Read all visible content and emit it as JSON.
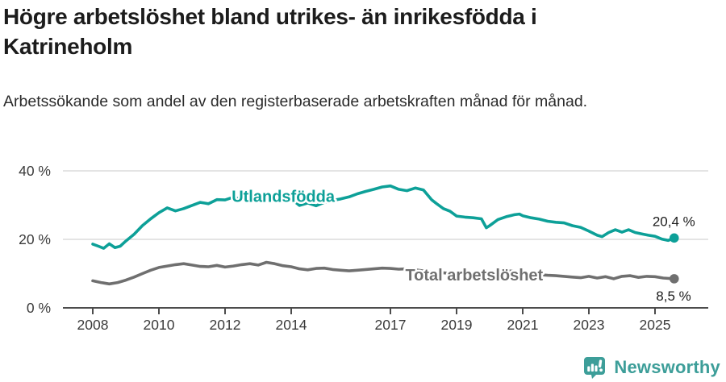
{
  "header": {
    "title": "Högre arbetslöshet bland utrikes- än inrikesfödda i Katrineholm",
    "subtitle": "Arbetssökande som andel av den registerbaserade arbetskraften månad för månad."
  },
  "chart_data": {
    "type": "line",
    "unit": "%",
    "grid": "horizontal-only",
    "legend_position": "inline-labels-on-lines",
    "xlim": [
      2007.3,
      2026.6
    ],
    "ylim": [
      0,
      43
    ],
    "x_ticks": [
      2008,
      2010,
      2012,
      2014,
      2017,
      2019,
      2021,
      2023,
      2025
    ],
    "y_ticks": [
      0,
      20,
      40
    ],
    "y_tick_labels": [
      "0 %",
      "20 %",
      "40 %"
    ],
    "series": [
      {
        "name": "Utlandsfödda",
        "color": "#0da098",
        "end_value": 20.4,
        "end_label": "20,4 %",
        "label_pos": {
          "x": 2012.2,
          "y": 31.0
        },
        "points": [
          [
            2008.0,
            18.6
          ],
          [
            2008.17,
            18.0
          ],
          [
            2008.33,
            17.4
          ],
          [
            2008.5,
            18.7
          ],
          [
            2008.67,
            17.6
          ],
          [
            2008.83,
            18.0
          ],
          [
            2009.0,
            19.5
          ],
          [
            2009.25,
            21.5
          ],
          [
            2009.5,
            24.0
          ],
          [
            2009.75,
            26.0
          ],
          [
            2010.0,
            27.8
          ],
          [
            2010.25,
            29.2
          ],
          [
            2010.5,
            28.3
          ],
          [
            2010.75,
            29.0
          ],
          [
            2011.0,
            29.9
          ],
          [
            2011.25,
            30.8
          ],
          [
            2011.5,
            30.4
          ],
          [
            2011.75,
            31.6
          ],
          [
            2012.0,
            31.5
          ],
          [
            2012.25,
            32.3
          ],
          [
            2012.5,
            31.6
          ],
          [
            2012.75,
            31.9
          ],
          [
            2013.0,
            32.1
          ],
          [
            2013.25,
            33.4
          ],
          [
            2013.5,
            32.6
          ],
          [
            2013.75,
            32.1
          ],
          [
            2014.0,
            31.8
          ],
          [
            2014.25,
            29.9
          ],
          [
            2014.5,
            30.6
          ],
          [
            2014.75,
            29.8
          ],
          [
            2015.0,
            30.8
          ],
          [
            2015.25,
            31.4
          ],
          [
            2015.5,
            31.8
          ],
          [
            2015.75,
            32.4
          ],
          [
            2016.0,
            33.3
          ],
          [
            2016.25,
            34.0
          ],
          [
            2016.5,
            34.6
          ],
          [
            2016.75,
            35.3
          ],
          [
            2017.0,
            35.6
          ],
          [
            2017.25,
            34.6
          ],
          [
            2017.5,
            34.2
          ],
          [
            2017.75,
            35.0
          ],
          [
            2018.0,
            34.4
          ],
          [
            2018.25,
            31.5
          ],
          [
            2018.4,
            30.4
          ],
          [
            2018.6,
            29.0
          ],
          [
            2018.8,
            28.2
          ],
          [
            2019.0,
            26.8
          ],
          [
            2019.25,
            26.5
          ],
          [
            2019.5,
            26.3
          ],
          [
            2019.75,
            26.0
          ],
          [
            2019.9,
            23.4
          ],
          [
            2020.0,
            24.0
          ],
          [
            2020.25,
            25.8
          ],
          [
            2020.5,
            26.6
          ],
          [
            2020.75,
            27.2
          ],
          [
            2020.9,
            27.4
          ],
          [
            2021.0,
            26.9
          ],
          [
            2021.25,
            26.3
          ],
          [
            2021.5,
            25.9
          ],
          [
            2021.75,
            25.3
          ],
          [
            2022.0,
            25.0
          ],
          [
            2022.25,
            24.8
          ],
          [
            2022.5,
            24.0
          ],
          [
            2022.75,
            23.5
          ],
          [
            2023.0,
            22.4
          ],
          [
            2023.25,
            21.2
          ],
          [
            2023.4,
            20.8
          ],
          [
            2023.6,
            22.0
          ],
          [
            2023.8,
            22.8
          ],
          [
            2024.0,
            22.1
          ],
          [
            2024.2,
            22.8
          ],
          [
            2024.4,
            22.0
          ],
          [
            2024.6,
            21.6
          ],
          [
            2024.8,
            21.2
          ],
          [
            2025.0,
            20.9
          ],
          [
            2025.2,
            20.1
          ],
          [
            2025.4,
            19.7
          ],
          [
            2025.58,
            20.4
          ]
        ]
      },
      {
        "name": "Total arbetslöshet",
        "color": "#6f6f6f",
        "end_value": 8.5,
        "end_label": "8,5 %",
        "label_pos": {
          "x": 2017.45,
          "y": 8.0
        },
        "points": [
          [
            2008.0,
            7.9
          ],
          [
            2008.25,
            7.4
          ],
          [
            2008.5,
            7.0
          ],
          [
            2008.75,
            7.4
          ],
          [
            2009.0,
            8.1
          ],
          [
            2009.25,
            9.0
          ],
          [
            2009.5,
            10.0
          ],
          [
            2009.75,
            11.0
          ],
          [
            2010.0,
            11.8
          ],
          [
            2010.25,
            12.2
          ],
          [
            2010.5,
            12.6
          ],
          [
            2010.75,
            12.9
          ],
          [
            2011.0,
            12.5
          ],
          [
            2011.25,
            12.1
          ],
          [
            2011.5,
            12.0
          ],
          [
            2011.75,
            12.4
          ],
          [
            2012.0,
            11.9
          ],
          [
            2012.25,
            12.2
          ],
          [
            2012.5,
            12.6
          ],
          [
            2012.75,
            12.9
          ],
          [
            2013.0,
            12.5
          ],
          [
            2013.25,
            13.3
          ],
          [
            2013.5,
            12.9
          ],
          [
            2013.75,
            12.3
          ],
          [
            2014.0,
            12.0
          ],
          [
            2014.25,
            11.4
          ],
          [
            2014.5,
            11.1
          ],
          [
            2014.75,
            11.5
          ],
          [
            2015.0,
            11.6
          ],
          [
            2015.25,
            11.2
          ],
          [
            2015.5,
            11.0
          ],
          [
            2015.75,
            10.8
          ],
          [
            2016.0,
            11.0
          ],
          [
            2016.25,
            11.2
          ],
          [
            2016.5,
            11.4
          ],
          [
            2016.75,
            11.6
          ],
          [
            2017.0,
            11.5
          ],
          [
            2017.25,
            11.3
          ],
          [
            2017.5,
            11.4
          ],
          [
            2017.75,
            11.1
          ],
          [
            2018.0,
            10.8
          ],
          [
            2018.25,
            10.5
          ],
          [
            2018.5,
            10.3
          ],
          [
            2018.75,
            10.1
          ],
          [
            2019.0,
            10.0
          ],
          [
            2019.25,
            9.8
          ],
          [
            2019.5,
            9.7
          ],
          [
            2019.75,
            9.5
          ],
          [
            2020.0,
            9.8
          ],
          [
            2020.25,
            10.6
          ],
          [
            2020.5,
            10.9
          ],
          [
            2020.75,
            10.6
          ],
          [
            2021.0,
            10.3
          ],
          [
            2021.25,
            10.0
          ],
          [
            2021.5,
            9.7
          ],
          [
            2021.75,
            9.5
          ],
          [
            2022.0,
            9.4
          ],
          [
            2022.25,
            9.2
          ],
          [
            2022.5,
            9.0
          ],
          [
            2022.75,
            8.8
          ],
          [
            2023.0,
            9.2
          ],
          [
            2023.25,
            8.7
          ],
          [
            2023.5,
            9.1
          ],
          [
            2023.75,
            8.5
          ],
          [
            2024.0,
            9.2
          ],
          [
            2024.25,
            9.4
          ],
          [
            2024.5,
            8.9
          ],
          [
            2024.75,
            9.2
          ],
          [
            2025.0,
            9.1
          ],
          [
            2025.25,
            8.7
          ],
          [
            2025.58,
            8.5
          ]
        ]
      }
    ]
  },
  "footer": {
    "brand": "Newsworthy"
  },
  "colors": {
    "accent_teal": "#0da098",
    "logo_teal": "#3d9e99",
    "line_gray": "#6f6f6f",
    "gridline": "#dcdcdc",
    "axis": "#4c4c4c",
    "text_dark": "#1c1c1c"
  }
}
